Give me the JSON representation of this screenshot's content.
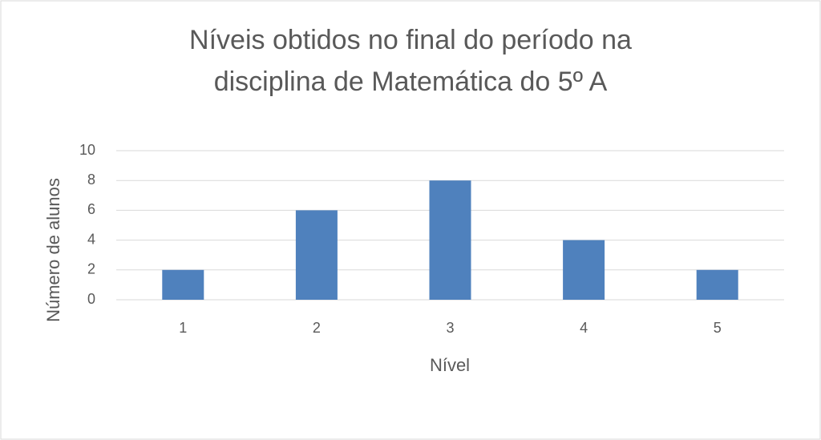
{
  "chart_data": {
    "type": "bar",
    "title": [
      "Níveis obtidos no final do período na",
      "disciplina de Matemática do 5º A"
    ],
    "x_label": "Nível",
    "y_label": "Número de alunos",
    "categories": [
      "1",
      "2",
      "3",
      "4",
      "5"
    ],
    "values": [
      2,
      6,
      8,
      4,
      2
    ],
    "color": "#4f81bd",
    "ylim": [
      0,
      10
    ],
    "yticks": [
      0,
      2,
      4,
      6,
      8,
      10
    ],
    "grid": true
  }
}
